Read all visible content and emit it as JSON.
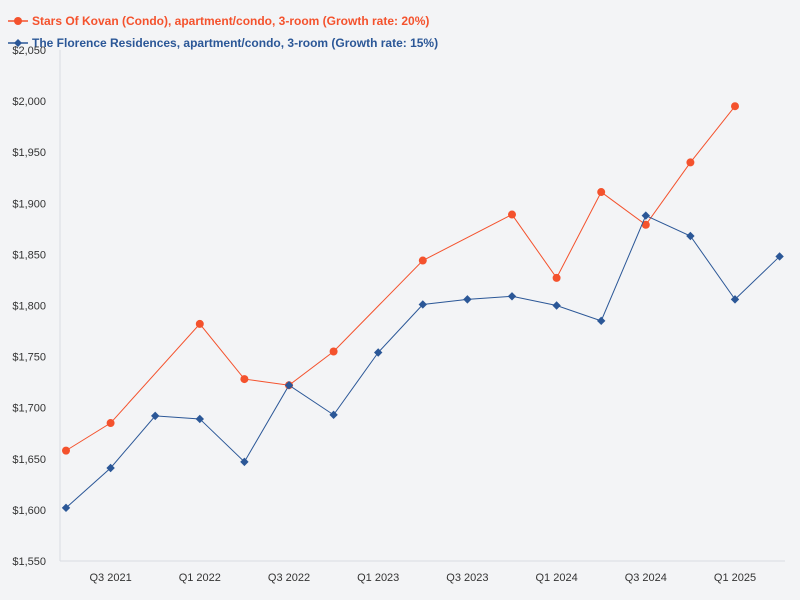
{
  "colors": {
    "series1": "#f4522d",
    "series2": "#2b5797",
    "axis": "#d8dce3",
    "tick_text": "#333333"
  },
  "chart_data": {
    "type": "line",
    "title": "",
    "xlabel": "",
    "ylabel": "",
    "ylim": [
      1550,
      2050
    ],
    "y_ticks": [
      1550,
      1600,
      1650,
      1700,
      1750,
      1800,
      1850,
      1900,
      1950,
      2000,
      2050
    ],
    "y_tick_labels": [
      "$1,550",
      "$1,600",
      "$1,650",
      "$1,700",
      "$1,750",
      "$1,800",
      "$1,850",
      "$1,900",
      "$1,950",
      "$2,000",
      "$2,050"
    ],
    "x": [
      "Q2 2021",
      "Q3 2021",
      "Q4 2021",
      "Q1 2022",
      "Q2 2022",
      "Q3 2022",
      "Q4 2022",
      "Q1 2023",
      "Q2 2023",
      "Q3 2023",
      "Q4 2023",
      "Q1 2024",
      "Q2 2024",
      "Q3 2024",
      "Q4 2024",
      "Q1 2025",
      "Q2 2025"
    ],
    "x_tick_labels": [
      {
        "index": 1,
        "label": "Q3 2021"
      },
      {
        "index": 3,
        "label": "Q1 2022"
      },
      {
        "index": 5,
        "label": "Q3 2022"
      },
      {
        "index": 7,
        "label": "Q1 2023"
      },
      {
        "index": 9,
        "label": "Q3 2023"
      },
      {
        "index": 11,
        "label": "Q1 2024"
      },
      {
        "index": 13,
        "label": "Q3 2024"
      },
      {
        "index": 15,
        "label": "Q1 2025"
      }
    ],
    "series": [
      {
        "name": "Stars Of Kovan (Condo), apartment/condo, 3-room (Growth rate: 20%)",
        "marker": "circle",
        "points": [
          {
            "i": 0,
            "y": 1658
          },
          {
            "i": 1,
            "y": 1685
          },
          {
            "i": 3,
            "y": 1782
          },
          {
            "i": 4,
            "y": 1728
          },
          {
            "i": 5,
            "y": 1722
          },
          {
            "i": 6,
            "y": 1755
          },
          {
            "i": 8,
            "y": 1844
          },
          {
            "i": 10,
            "y": 1889
          },
          {
            "i": 11,
            "y": 1827
          },
          {
            "i": 12,
            "y": 1911
          },
          {
            "i": 13,
            "y": 1879
          },
          {
            "i": 14,
            "y": 1940
          },
          {
            "i": 15,
            "y": 1995
          }
        ]
      },
      {
        "name": "The Florence Residences, apartment/condo, 3-room (Growth rate: 15%)",
        "marker": "diamond",
        "points": [
          {
            "i": 0,
            "y": 1602
          },
          {
            "i": 1,
            "y": 1641
          },
          {
            "i": 2,
            "y": 1692
          },
          {
            "i": 3,
            "y": 1689
          },
          {
            "i": 4,
            "y": 1647
          },
          {
            "i": 5,
            "y": 1722
          },
          {
            "i": 6,
            "y": 1693
          },
          {
            "i": 7,
            "y": 1754
          },
          {
            "i": 8,
            "y": 1801
          },
          {
            "i": 9,
            "y": 1806
          },
          {
            "i": 10,
            "y": 1809
          },
          {
            "i": 11,
            "y": 1800
          },
          {
            "i": 12,
            "y": 1785
          },
          {
            "i": 13,
            "y": 1888
          },
          {
            "i": 14,
            "y": 1868
          },
          {
            "i": 15,
            "y": 1806
          },
          {
            "i": 16,
            "y": 1848
          }
        ]
      }
    ],
    "legend_position": "top-left"
  }
}
